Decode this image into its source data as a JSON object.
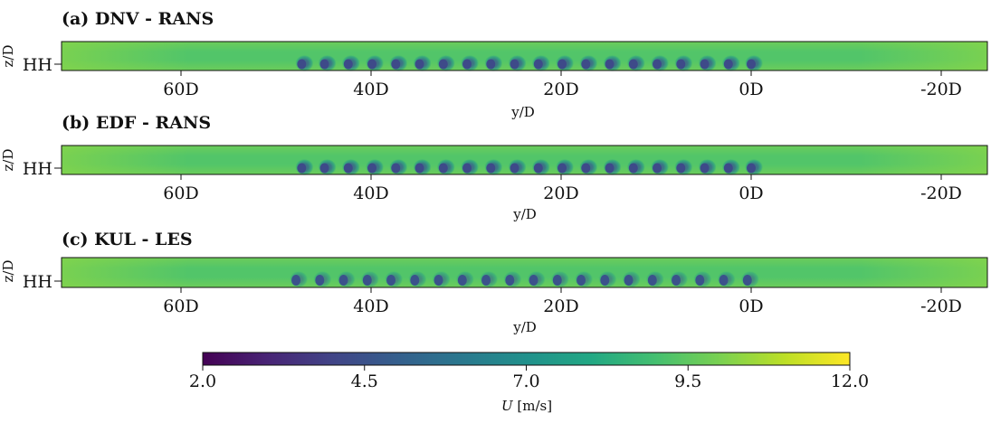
{
  "panels": [
    {
      "title": "(a) DNV - RANS",
      "ylabel": "z/D",
      "ytick": "HH",
      "xlabel": "y/D",
      "xticks": [
        "60D",
        "40D",
        "20D",
        "0D",
        "-20D"
      ],
      "turbine_y_D": [
        47.3,
        44.9,
        42.4,
        39.9,
        37.4,
        34.9,
        32.4,
        29.9,
        27.4,
        24.9,
        22.4,
        19.9,
        17.4,
        14.9,
        12.4,
        9.9,
        7.4,
        4.9,
        2.4,
        0.0
      ]
    },
    {
      "title": "(b) EDF - RANS",
      "ylabel": "z/D",
      "ytick": "HH",
      "xlabel": "y/D",
      "xticks": [
        "60D",
        "40D",
        "20D",
        "0D",
        "-20D"
      ],
      "turbine_y_D": [
        47.3,
        44.9,
        42.4,
        39.9,
        37.4,
        34.9,
        32.4,
        29.9,
        27.4,
        24.9,
        22.4,
        19.9,
        17.4,
        14.9,
        12.4,
        9.9,
        7.4,
        4.9,
        2.4,
        0.0
      ]
    },
    {
      "title": "(c) KUL - LES",
      "ylabel": "z/D",
      "ytick": "HH",
      "xlabel": "y/D",
      "xticks": [
        "60D",
        "40D",
        "20D",
        "0D",
        "-20D"
      ],
      "turbine_y_D": [
        47.9,
        45.4,
        42.9,
        40.4,
        37.9,
        35.4,
        32.9,
        30.4,
        27.9,
        25.4,
        22.9,
        20.4,
        17.9,
        15.4,
        12.9,
        10.4,
        7.9,
        5.4,
        2.9,
        0.4
      ]
    }
  ],
  "colorbar": {
    "label_symbol": "U",
    "label_unit": " [m/s]",
    "ticks": [
      "2.0",
      "4.5",
      "7.0",
      "9.5",
      "12.0"
    ]
  },
  "colors": {
    "background_field": "#5ec962",
    "wake_core": "#3b528b",
    "edge_field": "#7ad151"
  },
  "chart_data": [
    {
      "type": "heatmap",
      "title": "(a) DNV - RANS",
      "xlabel": "y/D",
      "ylabel": "z/D",
      "x_ticks": [
        60,
        40,
        20,
        0,
        -20
      ],
      "xlim": [
        73,
        -24
      ],
      "x_axis_reversed": true,
      "colormap": "viridis",
      "clim": [
        2.0,
        12.0
      ],
      "freestream_U": 9.5,
      "wake_U_min": 4.5
    },
    {
      "type": "heatmap",
      "title": "(b) EDF - RANS",
      "xlabel": "y/D",
      "ylabel": "z/D",
      "x_ticks": [
        60,
        40,
        20,
        0,
        -20
      ],
      "xlim": [
        73,
        -24
      ],
      "x_axis_reversed": true,
      "colormap": "viridis",
      "clim": [
        2.0,
        12.0
      ],
      "freestream_U": 9.5,
      "wake_U_min": 4.5
    },
    {
      "type": "heatmap",
      "title": "(c) KUL - LES",
      "xlabel": "y/D",
      "ylabel": "z/D",
      "x_ticks": [
        60,
        40,
        20,
        0,
        -20
      ],
      "xlim": [
        73,
        -24
      ],
      "x_axis_reversed": true,
      "colormap": "viridis",
      "clim": [
        2.0,
        12.0
      ],
      "freestream_U": 9.5,
      "wake_U_min": 4.0
    }
  ]
}
